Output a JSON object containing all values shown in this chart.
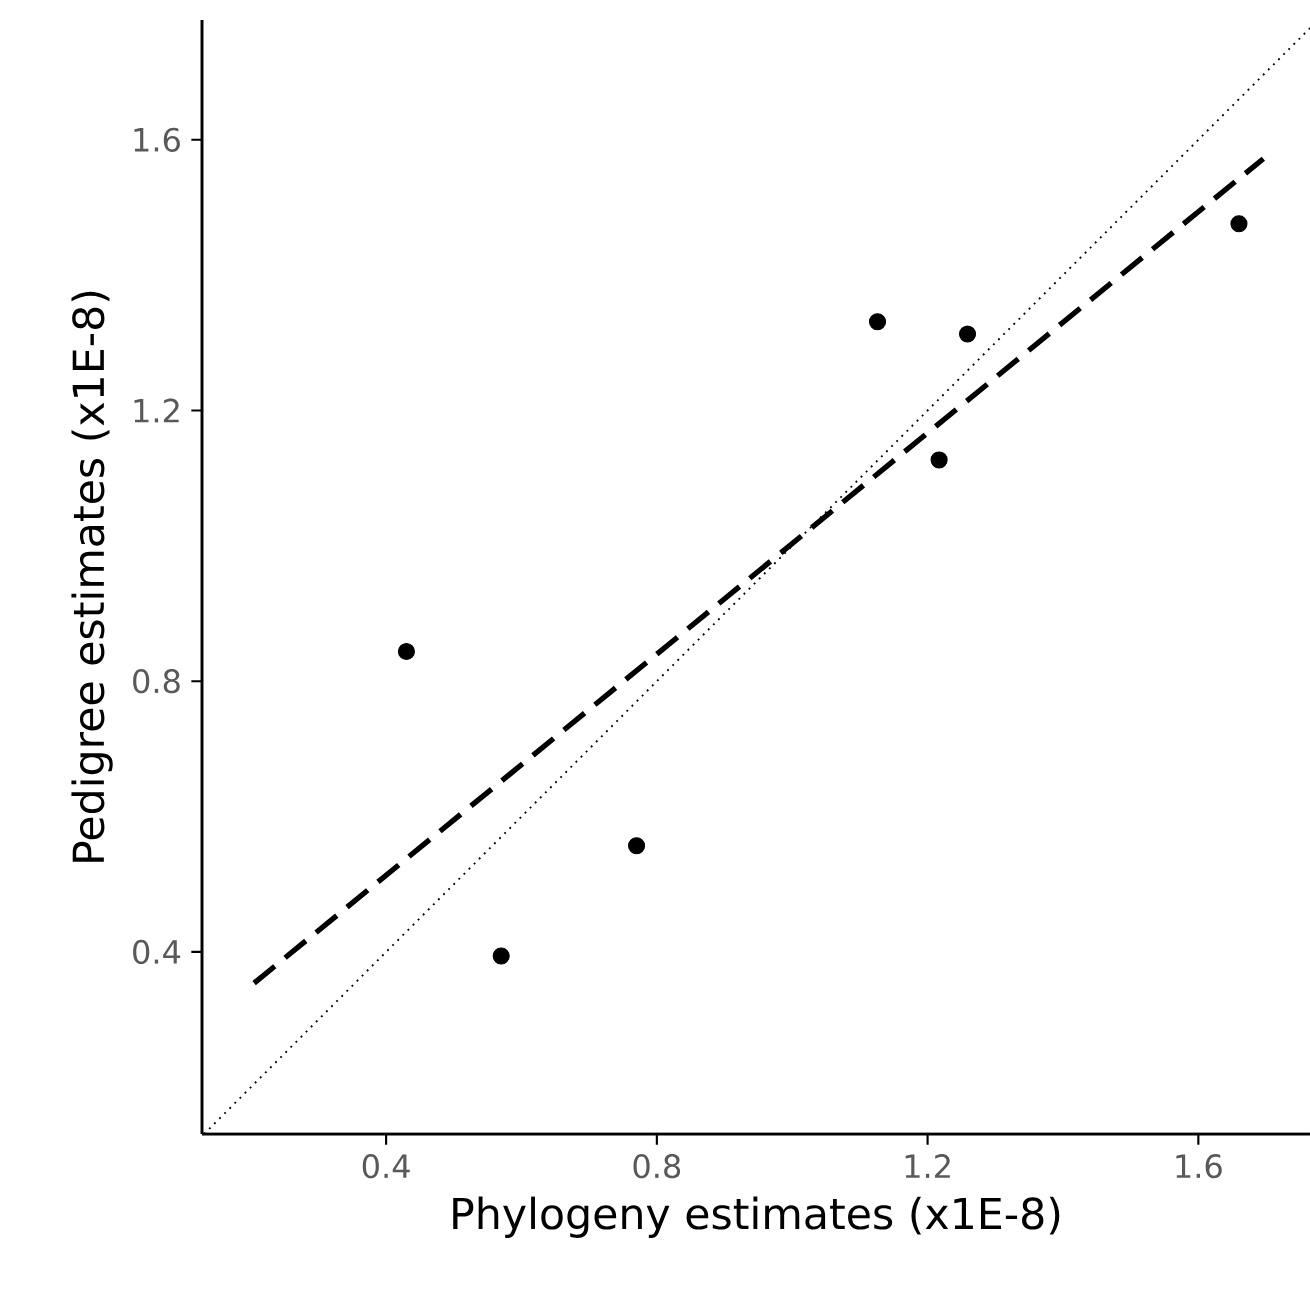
{
  "chart_data": {
    "type": "scatter",
    "xlabel": "Phylogeny estimates (x1E-8)",
    "ylabel": "Pedigree estimates (x1E-8)",
    "xlim": [
      0.128,
      1.765
    ],
    "ylim": [
      0.131,
      1.777
    ],
    "xticks": [
      0.4,
      0.8,
      1.2,
      1.6
    ],
    "yticks": [
      0.4,
      0.8,
      1.2,
      1.6
    ],
    "grid": false,
    "series": [
      {
        "color": "#000000",
        "marker": "circle",
        "x": [
          0.43,
          0.57,
          0.77,
          1.126,
          1.259,
          1.217,
          1.66
        ],
        "values": [
          0.844,
          0.394,
          0.557,
          1.331,
          1.313,
          1.127,
          1.476
        ]
      },
      {
        "type": "line",
        "color": "#000000",
        "marker": "none",
        "line_style": "dashed",
        "x": [
          0.205,
          1.696
        ],
        "values": [
          0.354,
          1.572
        ]
      },
      {
        "type": "line",
        "color": "#000000",
        "marker": "none",
        "line_style": "dotted",
        "x": [
          0.131,
          1.765
        ],
        "values": [
          0.131,
          1.765
        ]
      }
    ]
  }
}
